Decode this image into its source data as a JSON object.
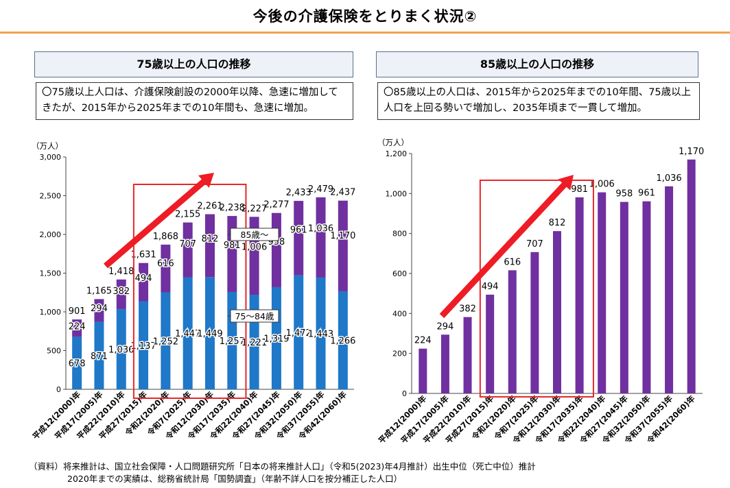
{
  "page": {
    "title": "今後の介護保険をとりまく状況②",
    "footnote_line1": "（資料）将来推計は、国立社会保障・人口問題研究所「日本の将来推計人口」（令和5(2023)年4月推計）出生中位（死亡中位）推計",
    "footnote_line2": "2020年までの実績は、総務省統計局「国勢調査」（年齢不詳人口を按分補正した人口）"
  },
  "colors": {
    "blue": "#1f78c8",
    "purple": "#7030a0",
    "highlight_box": "#e8262a",
    "arrow": "#ee1c25",
    "accent_rule": "#f1a14d"
  },
  "left": {
    "heading": "75歳以上の人口の推移",
    "description": "〇75歳以上人口は、介護保険創設の2000年以降、急速に増加してきたが、2015年から2025年までの10年間も、急速に増加。"
  },
  "right": {
    "heading": "85歳以上の人口の推移",
    "description": "〇85歳以上の人口は、2015年から2025年までの10年間、75歳以上人口を上回る勢いで増加し、2035年頃まで一貫して増加。"
  },
  "chart_data": [
    {
      "type": "bar",
      "stacked": true,
      "unit_label": "（万人）",
      "categories": [
        "平成12(2000)年",
        "平成17(2005)年",
        "平成22(2010)年",
        "平成27(2015)年",
        "令和2(2020)年",
        "令和7(2025)年",
        "令和12(2030)年",
        "令和17(2035)年",
        "令和22(2040)年",
        "令和27(2045)年",
        "令和32(2050)年",
        "令和37(2055)年",
        "令和42(2060)年"
      ],
      "series": [
        {
          "name": "75～84歳",
          "color": "#1f78c8",
          "values": [
            678,
            871,
            1036,
            1137,
            1252,
            1447,
            1449,
            1257,
            1221,
            1319,
            1472,
            1443,
            1266
          ],
          "labels": [
            "678",
            "871",
            "1,036",
            "1,137",
            "1,252",
            "1,447",
            "1,449",
            "1,257",
            "1,221",
            "1,319",
            "1,472",
            "1,443",
            "1,266"
          ]
        },
        {
          "name": "85歳～",
          "color": "#7030a0",
          "values": [
            224,
            294,
            382,
            494,
            616,
            707,
            812,
            981,
            1006,
            958,
            961,
            1036,
            1170
          ],
          "labels": [
            "224",
            "294",
            "382",
            "494",
            "616",
            "707",
            "812",
            "981",
            "1,006",
            "958",
            "961",
            "1,036",
            "1,170"
          ]
        }
      ],
      "totals": [
        901,
        1165,
        1418,
        1631,
        1868,
        2155,
        2261,
        2238,
        2227,
        2277,
        2433,
        2479,
        2437
      ],
      "total_labels": [
        "901",
        "1,165",
        "1,418",
        "1,631",
        "1,868",
        "2,155",
        "2,261",
        "2,238",
        "2,227",
        "2,277",
        "2,433",
        "2,479",
        "2,437"
      ],
      "ylim": [
        0,
        3000
      ],
      "yticks": [
        0,
        500,
        1000,
        1500,
        2000,
        2500,
        3000
      ],
      "ytick_labels": [
        "0",
        "500",
        "1,000",
        "1,500",
        "2,000",
        "2,500",
        "3,000"
      ],
      "highlight_categories": [
        "平成27(2015)年",
        "令和2(2020)年",
        "令和7(2025)年",
        "令和12(2030)年",
        "令和17(2035)年"
      ],
      "grid": false
    },
    {
      "type": "bar",
      "unit_label": "（万人）",
      "categories": [
        "平成12(2000)年",
        "平成17(2005)年",
        "平成22(2010)年",
        "平成27(2015)年",
        "令和2(2020)年",
        "令和7(2025)年",
        "令和12(2030)年",
        "令和17(2035)年",
        "令和22(2040)年",
        "令和27(2045)年",
        "令和32(2050)年",
        "令和37(2055)年",
        "令和42(2060)年"
      ],
      "series": [
        {
          "name": "85歳～",
          "color": "#7030a0",
          "values": [
            224,
            294,
            382,
            494,
            616,
            707,
            812,
            981,
            1006,
            958,
            961,
            1036,
            1170
          ],
          "labels": [
            "224",
            "294",
            "382",
            "494",
            "616",
            "707",
            "812",
            "981",
            "1,006",
            "958",
            "961",
            "1,036",
            "1,170"
          ]
        }
      ],
      "ylim": [
        0,
        1200
      ],
      "yticks": [
        0,
        200,
        400,
        600,
        800,
        1000,
        1200
      ],
      "ytick_labels": [
        "0",
        "200",
        "400",
        "600",
        "800",
        "1,000",
        "1,200"
      ],
      "highlight_categories": [
        "平成27(2015)年",
        "令和2(2020)年",
        "令和7(2025)年",
        "令和12(2030)年",
        "令和17(2035)年"
      ],
      "grid": false
    }
  ]
}
